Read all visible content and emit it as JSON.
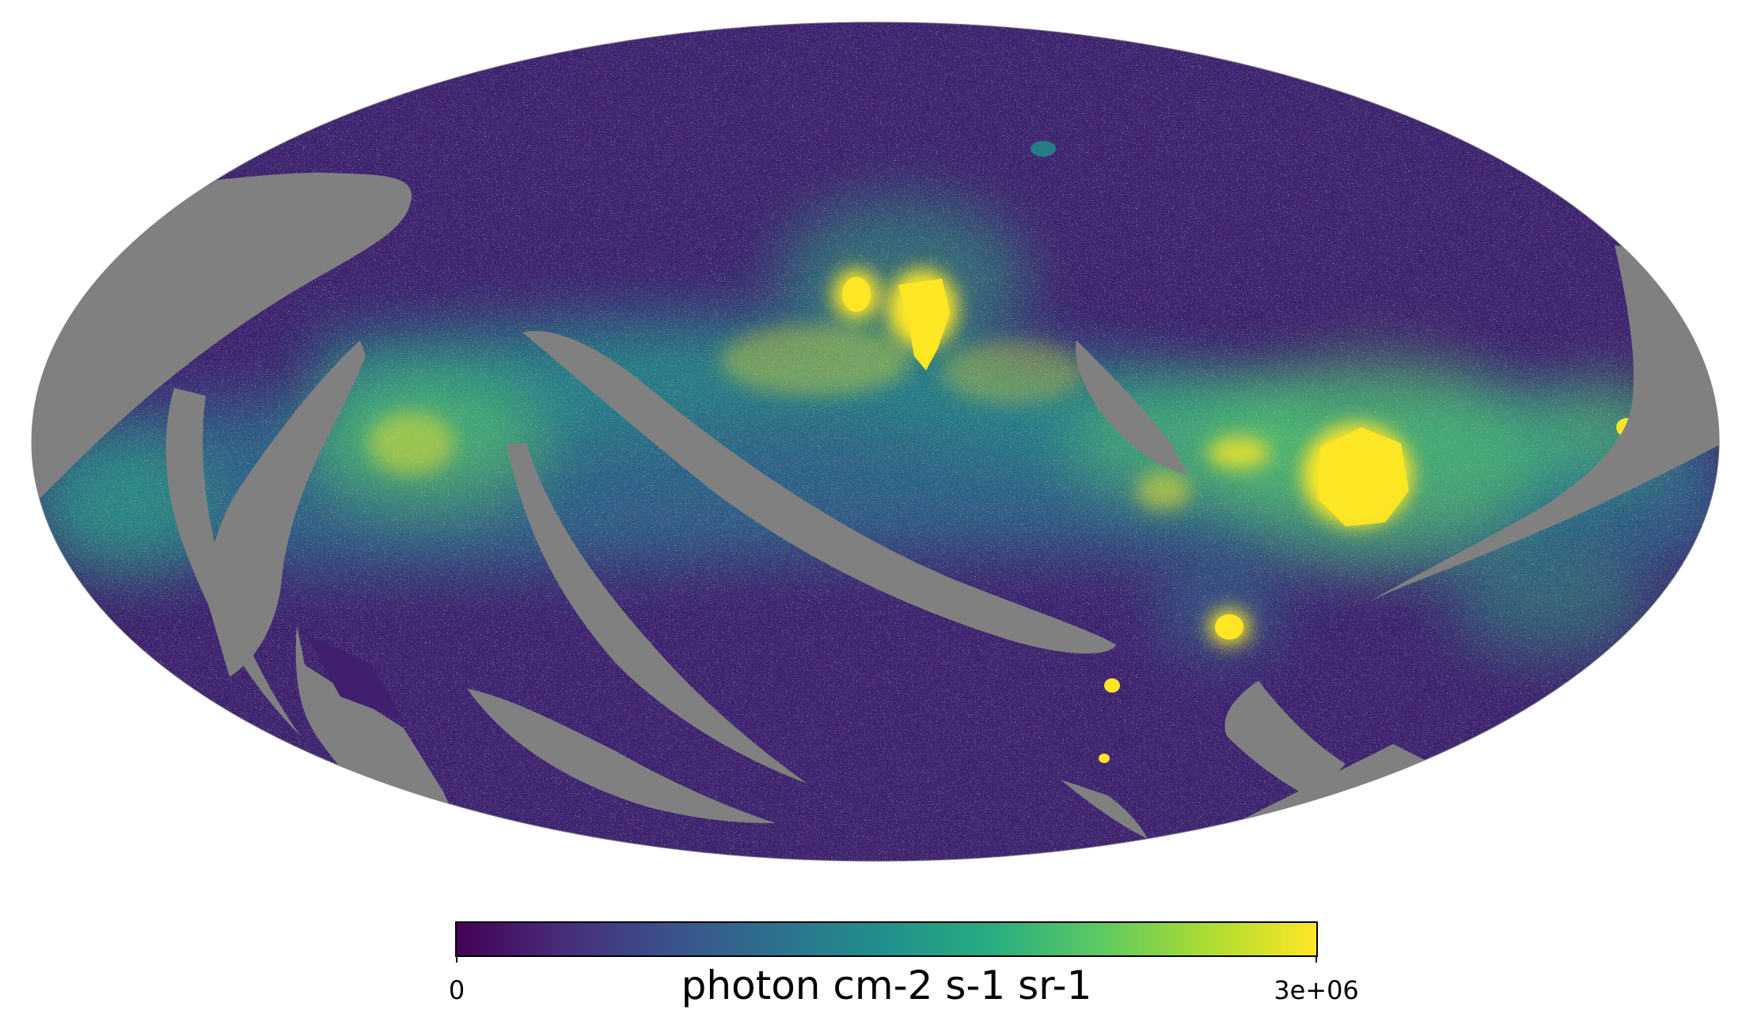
{
  "figure": {
    "projection": "mollweide",
    "masked_color": "#808080",
    "colormap": "viridis",
    "colormap_stops": [
      "#440154",
      "#472d7b",
      "#3b528b",
      "#2c728e",
      "#21918c",
      "#28ae80",
      "#5ec962",
      "#addc30",
      "#fde725"
    ],
    "regions": [
      {
        "name": "bright-blob-upper-left",
        "intensity": "saturated"
      },
      {
        "name": "bright-blob-upper-center",
        "intensity": "saturated"
      },
      {
        "name": "bright-region-right",
        "intensity": "saturated"
      },
      {
        "name": "bright-compact-source-lower-center",
        "intensity": "saturated"
      }
    ]
  },
  "colorbar": {
    "min_label": "0",
    "max_label": "3e+06",
    "unit_label": "photon cm-2 s-1 sr-1",
    "vmin": 0,
    "vmax": 3000000
  }
}
